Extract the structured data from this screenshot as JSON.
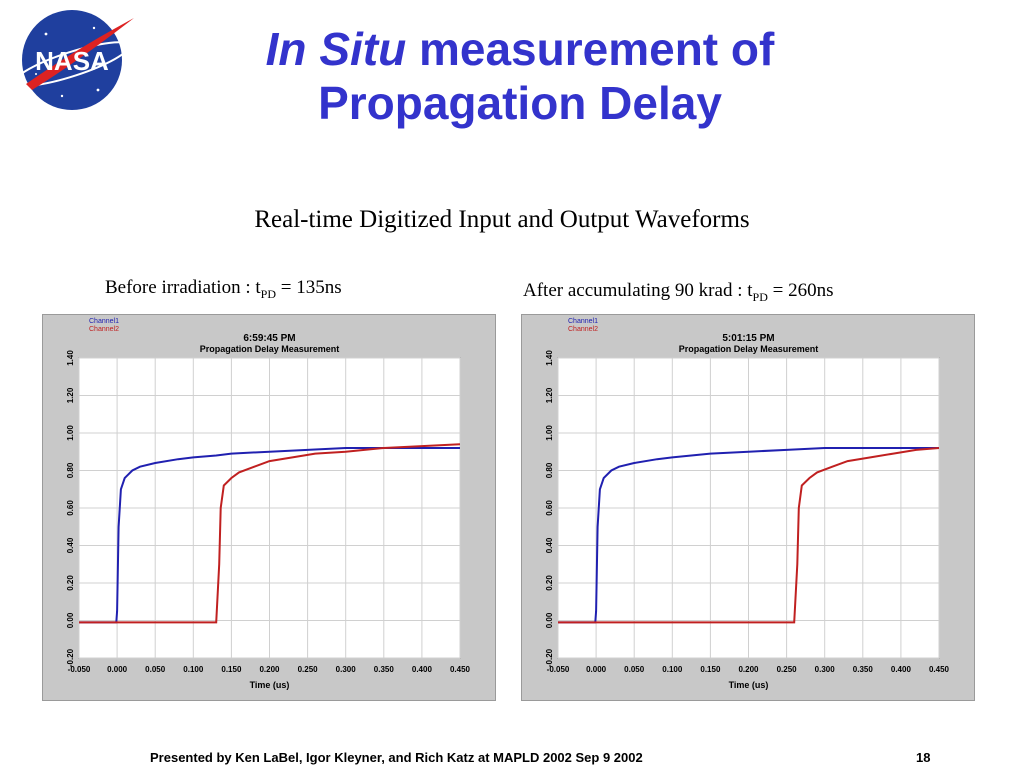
{
  "logo": {
    "text": "NASA"
  },
  "title": {
    "italic": "In Situ",
    "rest_line1": " measurement of",
    "line2": "Propagation Delay"
  },
  "subtitle": "Real-time Digitized Input and Output Waveforms",
  "captions": {
    "left": {
      "prefix": "Before irradiation : t",
      "sub": "PD",
      "suffix": " = 135ns"
    },
    "right": {
      "prefix": "After accumulating 90 krad : t",
      "sub": "PD",
      "suffix": " = 260ns"
    }
  },
  "footer": {
    "credit": "Presented by Ken LaBel, Igor Kleyner, and Rich Katz at MAPLD 2002 Sep 9 2002",
    "page": "18"
  },
  "colors": {
    "title": "#3333cc",
    "channel1": "#2020b0",
    "channel2": "#c02020",
    "plot_bg": "#ffffff",
    "panel_bg": "#c8c8c8"
  },
  "chart_data": [
    {
      "type": "line",
      "timestamp": "6:59:45 PM",
      "title": "Propagation Delay Measurement",
      "xlabel": "Time (us)",
      "ylabel": "",
      "xlim": [
        -0.05,
        0.45
      ],
      "ylim": [
        -0.2,
        1.4
      ],
      "xticks": [
        "-0.050",
        "0.000",
        "0.050",
        "0.100",
        "0.150",
        "0.200",
        "0.250",
        "0.300",
        "0.350",
        "0.400",
        "0.450"
      ],
      "yticks": [
        "-0.20",
        "0.00",
        "0.20",
        "0.40",
        "0.60",
        "0.80",
        "1.00",
        "1.20",
        "1.40"
      ],
      "grid": true,
      "legend": "top-left",
      "series": [
        {
          "name": "Channel1",
          "color": "#2020b0",
          "x": [
            -0.05,
            -0.001,
            0.0,
            0.002,
            0.005,
            0.01,
            0.02,
            0.03,
            0.05,
            0.08,
            0.1,
            0.13,
            0.15,
            0.2,
            0.25,
            0.3,
            0.35,
            0.4,
            0.45
          ],
          "y": [
            -0.01,
            -0.01,
            0.05,
            0.5,
            0.7,
            0.76,
            0.8,
            0.82,
            0.84,
            0.86,
            0.87,
            0.88,
            0.89,
            0.9,
            0.91,
            0.92,
            0.92,
            0.92,
            0.92
          ]
        },
        {
          "name": "Channel2",
          "color": "#c02020",
          "x": [
            -0.05,
            0.0,
            0.13,
            0.134,
            0.136,
            0.14,
            0.15,
            0.16,
            0.18,
            0.2,
            0.23,
            0.26,
            0.3,
            0.35,
            0.4,
            0.45
          ],
          "y": [
            -0.01,
            -0.01,
            -0.01,
            0.3,
            0.6,
            0.72,
            0.76,
            0.79,
            0.82,
            0.85,
            0.87,
            0.89,
            0.9,
            0.92,
            0.93,
            0.94
          ]
        }
      ]
    },
    {
      "type": "line",
      "timestamp": "5:01:15 PM",
      "title": "Propagation Delay Measurement",
      "xlabel": "Time (us)",
      "ylabel": "",
      "xlim": [
        -0.05,
        0.45
      ],
      "ylim": [
        -0.2,
        1.4
      ],
      "xticks": [
        "-0.050",
        "0.000",
        "0.050",
        "0.100",
        "0.150",
        "0.200",
        "0.250",
        "0.300",
        "0.350",
        "0.400",
        "0.450"
      ],
      "yticks": [
        "-0.20",
        "0.00",
        "0.20",
        "0.40",
        "0.60",
        "0.80",
        "1.00",
        "1.20",
        "1.40"
      ],
      "grid": true,
      "legend": "top-left",
      "series": [
        {
          "name": "Channel1",
          "color": "#2020b0",
          "x": [
            -0.05,
            -0.001,
            0.0,
            0.002,
            0.005,
            0.01,
            0.02,
            0.03,
            0.05,
            0.08,
            0.1,
            0.15,
            0.2,
            0.25,
            0.3,
            0.35,
            0.4,
            0.45
          ],
          "y": [
            -0.01,
            -0.01,
            0.05,
            0.5,
            0.7,
            0.76,
            0.8,
            0.82,
            0.84,
            0.86,
            0.87,
            0.89,
            0.9,
            0.91,
            0.92,
            0.92,
            0.92,
            0.92
          ]
        },
        {
          "name": "Channel2",
          "color": "#c02020",
          "x": [
            -0.05,
            0.0,
            0.26,
            0.264,
            0.266,
            0.27,
            0.28,
            0.29,
            0.31,
            0.33,
            0.36,
            0.39,
            0.42,
            0.45
          ],
          "y": [
            -0.01,
            -0.01,
            -0.01,
            0.3,
            0.6,
            0.72,
            0.76,
            0.79,
            0.82,
            0.85,
            0.87,
            0.89,
            0.91,
            0.92
          ]
        }
      ]
    }
  ]
}
